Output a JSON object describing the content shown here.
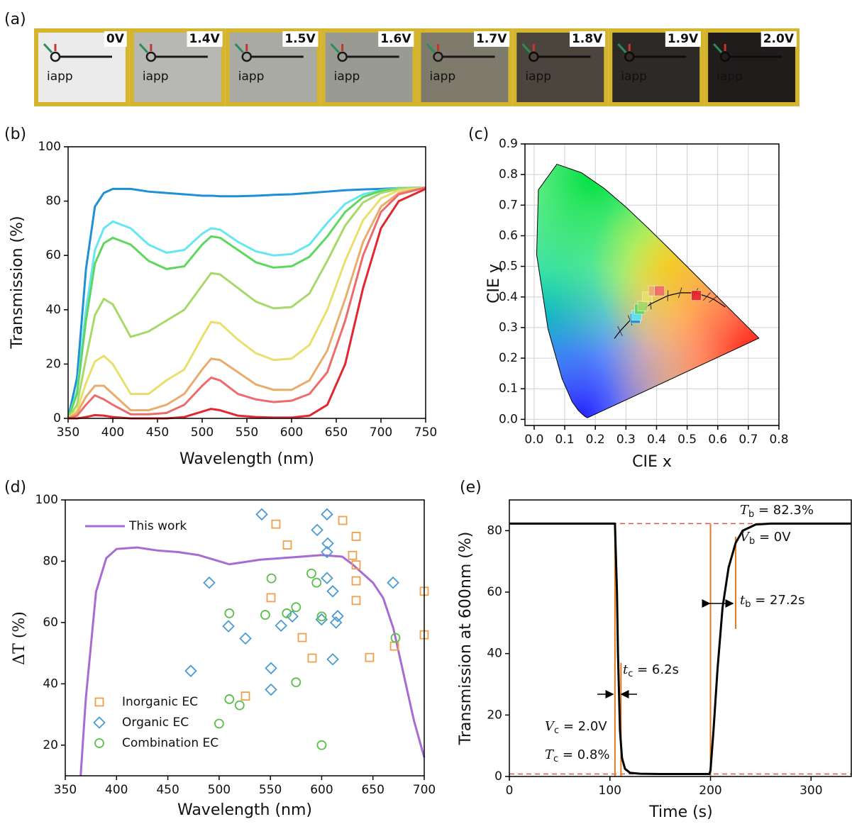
{
  "photo_strip": {
    "label": "(a)",
    "logo_text": "iapp",
    "photos": [
      {
        "caption": "0V",
        "caption_color": "#1e9be0",
        "tint": "#ebebec"
      },
      {
        "caption": "1.4V",
        "caption_color": "#66e3ef",
        "tint": "#b7b8b4"
      },
      {
        "caption": "1.5V",
        "caption_color": "#66dc6a",
        "tint": "#a9aaa4"
      },
      {
        "caption": "1.6V",
        "caption_color": "#a9dc6c",
        "tint": "#999a92"
      },
      {
        "caption": "1.7V",
        "caption_color": "#e6de72",
        "tint": "#7e7b6d"
      },
      {
        "caption": "1.8V",
        "caption_color": "#e9b172",
        "tint": "#4b453e"
      },
      {
        "caption": "1.9V",
        "caption_color": "#ee6a6a",
        "tint": "#2d2927"
      },
      {
        "caption": "2.0V",
        "caption_color": "#e6323a",
        "tint": "#1f1c1b"
      }
    ]
  },
  "chart_data": [
    {
      "type": "line",
      "panel_label": "(b)",
      "xlabel": "Wavelength (nm)",
      "ylabel": "Transmission (%)",
      "x": [
        350,
        360,
        370,
        380,
        390,
        400,
        420,
        440,
        460,
        480,
        500,
        510,
        520,
        540,
        560,
        580,
        600,
        620,
        640,
        660,
        680,
        700,
        720,
        750
      ],
      "series": [
        {
          "color": "#1f8fd8",
          "values": [
            0,
            15,
            55,
            78,
            83,
            84.5,
            84.5,
            83.5,
            83,
            82.5,
            82,
            82,
            81.8,
            81.8,
            82,
            82.3,
            82.5,
            83,
            83.5,
            84,
            84.3,
            84.5,
            84.8,
            85
          ]
        },
        {
          "color": "#66e6f2",
          "values": [
            0,
            10,
            40,
            62,
            70,
            72.5,
            70,
            64,
            61,
            62,
            68,
            70,
            69.5,
            65,
            61.5,
            60,
            60.5,
            64,
            72,
            79,
            82.5,
            84,
            84.8,
            85
          ]
        },
        {
          "color": "#5fd65f",
          "values": [
            0,
            9,
            36,
            57,
            64.5,
            66.5,
            64,
            58,
            55,
            56,
            64,
            67,
            66.5,
            62,
            57.5,
            55.5,
            56,
            59.5,
            67,
            76,
            81.5,
            83.8,
            84.7,
            85
          ]
        },
        {
          "color": "#a6d96a",
          "values": [
            0,
            5,
            22,
            38,
            44,
            42,
            30,
            32,
            36,
            40,
            49,
            53.5,
            53,
            48,
            43,
            40.5,
            41,
            46,
            58,
            71,
            79.5,
            83,
            84.5,
            85
          ]
        },
        {
          "color": "#e8df6c",
          "values": [
            0,
            3,
            13,
            21,
            23,
            20,
            9,
            9,
            14,
            18,
            30,
            35.5,
            35,
            29,
            24,
            21.5,
            22,
            27,
            40,
            58,
            73,
            81,
            84,
            85
          ]
        },
        {
          "color": "#e8ad6c",
          "values": [
            0,
            2,
            8,
            12,
            12,
            9,
            3,
            3,
            5,
            9,
            18,
            22,
            21.5,
            17,
            12.5,
            10.5,
            10.5,
            14,
            25,
            44,
            65,
            78,
            83,
            85
          ]
        },
        {
          "color": "#ee6b6b",
          "values": [
            0,
            1,
            5,
            8.5,
            7,
            5,
            1.5,
            1.5,
            2,
            5,
            12,
            15,
            14,
            9,
            7,
            6,
            6.5,
            9,
            17,
            36,
            60,
            76,
            82.5,
            85
          ]
        },
        {
          "color": "#e4262e",
          "values": [
            0,
            0,
            0.5,
            1.2,
            1,
            0.5,
            0,
            0,
            0,
            0.5,
            2.5,
            3.5,
            3,
            1,
            0.5,
            0.3,
            0.3,
            1,
            5,
            20,
            48,
            70,
            80,
            84.5
          ]
        }
      ],
      "xlim": [
        350,
        750
      ],
      "ylim": [
        0,
        100
      ],
      "xticks": [
        350,
        400,
        450,
        500,
        550,
        600,
        650,
        700,
        750
      ],
      "yticks": [
        0,
        20,
        40,
        60,
        80,
        100
      ]
    },
    {
      "type": "chromaticity",
      "panel_label": "(c)",
      "xlabel": "CIE x",
      "ylabel": "CIE y",
      "xlim": [
        -0.03,
        0.8
      ],
      "ylim": [
        -0.02,
        0.9
      ],
      "xticks": [
        {
          "value": 0,
          "label": "0.0"
        },
        0.1,
        0.2,
        0.3,
        0.4,
        0.5,
        0.6,
        0.7,
        0.8
      ],
      "yticks": [
        {
          "value": 0,
          "label": "0.0"
        },
        0.1,
        0.2,
        0.3,
        0.4,
        0.5,
        0.6,
        0.7,
        0.8,
        0.9
      ],
      "grid": true,
      "spectral_locus": {
        "x": [
          0.1741,
          0.1644,
          0.1566,
          0.144,
          0.1241,
          0.0913,
          0.0454,
          0.0082,
          0.0139,
          0.0743,
          0.1547,
          0.2296,
          0.3016,
          0.3731,
          0.4441,
          0.5125,
          0.5752,
          0.627,
          0.6915,
          0.7347
        ],
        "y": [
          0.005,
          0.0109,
          0.0177,
          0.0297,
          0.0578,
          0.1327,
          0.295,
          0.5384,
          0.7502,
          0.8338,
          0.8059,
          0.7543,
          0.6923,
          0.6245,
          0.5547,
          0.4866,
          0.4242,
          0.3725,
          0.3083,
          0.2653
        ]
      },
      "planckian_locus": {
        "x": [
          0.2624,
          0.2807,
          0.3135,
          0.3451,
          0.3805,
          0.4369,
          0.477,
          0.5267,
          0.5644,
          0.5857,
          0.6251
        ],
        "y": [
          0.2645,
          0.2883,
          0.3236,
          0.3516,
          0.3768,
          0.4041,
          0.4137,
          0.4133,
          0.4014,
          0.3931,
          0.367
        ]
      },
      "points": {
        "x": [
          0.33,
          0.335,
          0.345,
          0.355,
          0.37,
          0.39,
          0.41,
          0.53
        ],
        "y": [
          0.33,
          0.34,
          0.36,
          0.37,
          0.4,
          0.42,
          0.42,
          0.405
        ],
        "colors": [
          "#1f8fd8",
          "#66e6f2",
          "#5fd65f",
          "#a6d96a",
          "#e8df6c",
          "#e8ad6c",
          "#ee6b6b",
          "#e4262e"
        ]
      }
    },
    {
      "type": "scatter_line",
      "panel_label": "(d)",
      "xlabel": "Wavelength (nm)",
      "ylabel": "ΔT (%)",
      "xlim": [
        350,
        700
      ],
      "ylim": [
        10,
        100
      ],
      "xticks": [
        350,
        400,
        450,
        500,
        550,
        600,
        650,
        700
      ],
      "yticks": [
        20,
        40,
        60,
        80,
        100
      ],
      "series": [
        {
          "name": "This work",
          "kind": "line",
          "color": "#a86bd3",
          "legend": "upper left",
          "x": [
            365,
            370,
            380,
            390,
            400,
            420,
            440,
            460,
            480,
            500,
            510,
            520,
            540,
            560,
            580,
            600,
            620,
            630,
            640,
            650,
            660,
            670,
            680,
            690,
            700
          ],
          "y": [
            10,
            35,
            70,
            81,
            84,
            84.5,
            83.5,
            83,
            82,
            80,
            79,
            79.5,
            80.5,
            81,
            81.5,
            82,
            81.5,
            79,
            76,
            73,
            68,
            58,
            43,
            28,
            16
          ]
        },
        {
          "name": "Inorganic EC",
          "kind": "scatter",
          "marker": "square",
          "color": "#f0a04c",
          "legend": "lower left",
          "x": [
            555.4,
            566.5,
            620.5,
            633.6,
            630.1,
            633.6,
            633.6,
            633.6,
            550.6,
            581,
            590.7,
            646.7,
            671,
            700,
            700,
            525.7
          ],
          "y": [
            92.1,
            85.3,
            93.3,
            88.1,
            81.9,
            78.8,
            73.6,
            67.2,
            68.1,
            55.1,
            48.4,
            48.6,
            52.3,
            70.2,
            56,
            36
          ]
        },
        {
          "name": "Organic EC",
          "kind": "scatter",
          "marker": "diamond",
          "color": "#4a9cd1",
          "legend": "lower left",
          "x": [
            541.6,
            605.2,
            595.6,
            605.9,
            605.2,
            490.4,
            669.6,
            605.2,
            610.8,
            509.1,
            525.7,
            560.4,
            571.4,
            599.9,
            615.6,
            614,
            610.8,
            550.6,
            550.6,
            472.4
          ],
          "y": [
            95.3,
            95.3,
            90.2,
            85.8,
            83,
            73,
            73,
            74.5,
            70.2,
            58.8,
            54.8,
            59,
            62,
            61,
            62.1,
            60,
            48,
            45.1,
            38.1,
            44.2
          ]
        },
        {
          "name": "Combination EC",
          "kind": "scatter",
          "marker": "circle",
          "color": "#5bbf4a",
          "legend": "lower left",
          "x": [
            590,
            595,
            551,
            575,
            566,
            545,
            510,
            600,
            672,
            510,
            520,
            500,
            575,
            600
          ],
          "y": [
            76,
            73,
            74.4,
            65,
            63,
            62.5,
            63,
            62,
            55,
            35,
            33,
            27,
            40.5,
            20
          ]
        }
      ]
    },
    {
      "type": "line",
      "panel_label": "(e)",
      "xlabel": "Time (s)",
      "ylabel": "Transmission at 600nm (%)",
      "x": [
        0,
        105,
        107,
        108,
        110,
        112,
        115,
        120,
        130,
        150,
        199,
        200,
        203,
        207,
        212,
        218,
        225,
        232,
        245,
        260,
        340
      ],
      "series": [
        {
          "color": "#000000",
          "values": [
            82.3,
            82.3,
            60,
            40,
            15,
            6,
            2.5,
            1.2,
            0.9,
            0.8,
            0.8,
            2,
            15,
            35,
            55,
            68,
            76,
            80,
            82,
            82.3,
            82.3
          ]
        }
      ],
      "xlim": [
        0,
        340
      ],
      "ylim": [
        0,
        90
      ],
      "xticks": [
        0,
        100,
        200,
        300
      ],
      "yticks": [
        0,
        20,
        40,
        60,
        80
      ],
      "reference_lines": {
        "color": "#d9534f",
        "values": [
          82.3,
          0.8
        ]
      },
      "markers": {
        "color": "#e07b20",
        "lines": [
          {
            "x": 105,
            "y": [
              0,
              82.3
            ]
          },
          {
            "x": 111,
            "y": [
              0,
              37
            ]
          },
          {
            "x": 200,
            "y": [
              0,
              82.3
            ]
          },
          {
            "x": 225,
            "y": [
              48,
              78
            ]
          }
        ]
      },
      "annotations": [
        {
          "symbol": "T",
          "sub": "b",
          "text": " = 82.3%"
        },
        {
          "symbol": "V",
          "sub": "b",
          "text": " = 0V"
        },
        {
          "symbol": "t",
          "sub": "b",
          "text": " = 27.2s"
        },
        {
          "symbol": "t",
          "sub": "c",
          "text": " = 6.2s"
        },
        {
          "symbol": "V",
          "sub": "c",
          "text": " = 2.0V"
        },
        {
          "symbol": "T",
          "sub": "c",
          "text": " = 0.8%"
        }
      ]
    }
  ]
}
